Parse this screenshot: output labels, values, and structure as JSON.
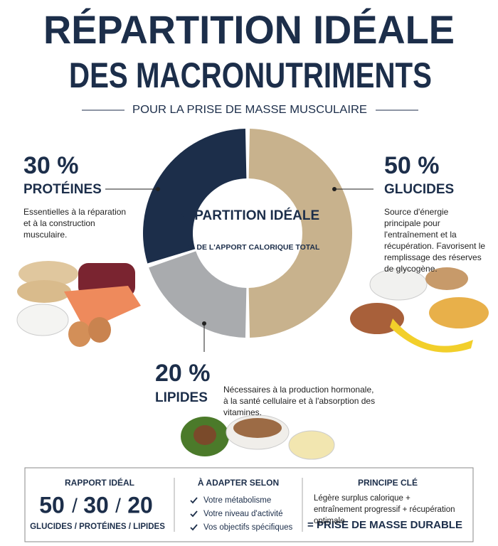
{
  "header": {
    "title_line1": "RÉPARTITION IDÉALE",
    "title_line2": "DES MACRONUTRIMENTS",
    "subtitle": "POUR LA PRISE DE MASSE MUSCULAIRE"
  },
  "chart_data": {
    "type": "pie",
    "donut": true,
    "title": "RÉPARTITION IDÉALE",
    "subtitle": "EN % DE L'APPORT CALORIQUE TOTAL",
    "categories": [
      "GLUCIDES",
      "LIPIDES",
      "PROTÉINES"
    ],
    "values": [
      50,
      20,
      30
    ],
    "value_labels": [
      "50 %",
      "20 %",
      "30 %"
    ],
    "colors": [
      "#c8b28d",
      "#a9abae",
      "#1c2e4a"
    ],
    "descriptions": [
      "Source d'énergie principale pour l'entraînement et la récupération. Favorisent le remplissage des réserves de glycogène.",
      "Nécessaires à la production hormonale, à la santé cellulaire et à l'absorption des vitamines.",
      "Essentielles à la réparation et à la construction musculaire."
    ]
  },
  "summary": {
    "ratio": {
      "heading": "RAPPORT IDÉAL",
      "separator": "/",
      "legend": "GLUCIDES / PROTÉINES / LIPIDES"
    },
    "adapt": {
      "heading": "À ADAPTER SELON",
      "items": [
        "Votre métabolisme",
        "Votre niveau d'activité",
        "Vos objectifs spécifiques"
      ]
    },
    "principle": {
      "heading": "PRINCIPE CLÉ",
      "text": "Légère surplus calorique + entraînement progressif + récupération optimale",
      "result": "= PRISE DE MASSE DURABLE"
    }
  }
}
